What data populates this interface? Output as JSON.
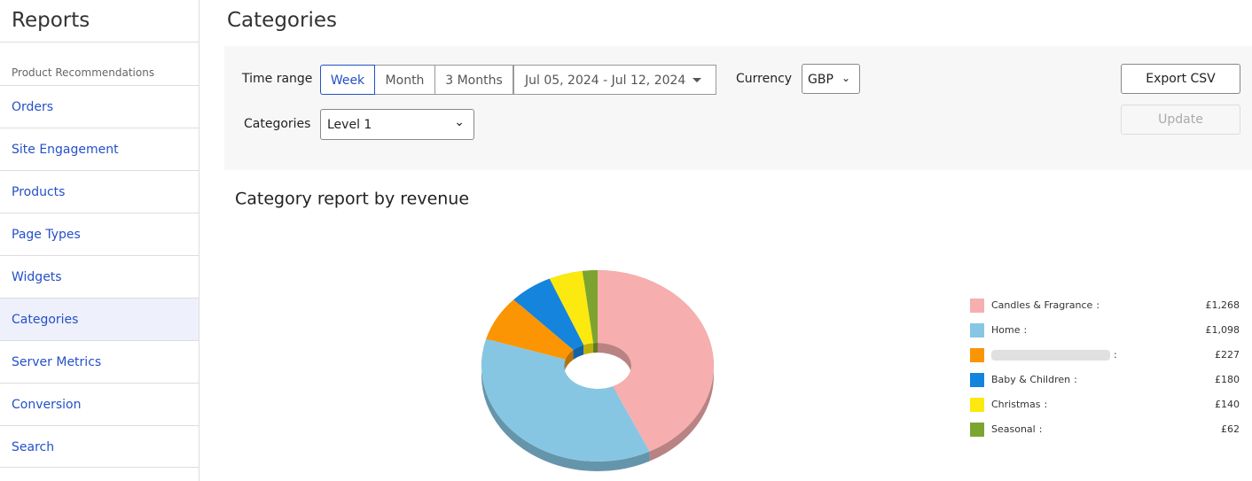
{
  "sidebar": {
    "title": "Reports",
    "section": "Product Recommendations",
    "items": [
      "Orders",
      "Site Engagement",
      "Products",
      "Page Types",
      "Widgets",
      "Categories",
      "Server Metrics",
      "Conversion",
      "Search"
    ],
    "active_index": 5
  },
  "header": {
    "title": "Categories"
  },
  "filters": {
    "time_range_label": "Time range",
    "time_range_options": [
      "Week",
      "Month",
      "3 Months"
    ],
    "active_option": 0,
    "date_range": "Jul 05, 2024 - Jul 12, 2024",
    "currency_label": "Currency",
    "currency": "GBP",
    "categories_label": "Categories",
    "categories_level": "Level 1",
    "export_button": "Export CSV",
    "update_button": "Update"
  },
  "chart_data": {
    "type": "pie",
    "donut": true,
    "title": "Category report by revenue",
    "categories": [
      "Candles & Fragrance",
      "Home",
      null,
      "Baby & Children",
      "Christmas",
      "Seasonal"
    ],
    "values": [
      1268,
      1098,
      227,
      180,
      140,
      62
    ],
    "value_labels": [
      "£1,268",
      "£1,098",
      "£227",
      "£180",
      "£140",
      "£62"
    ],
    "colors": [
      "#f7aeae",
      "#87c6e2",
      "#fb9504",
      "#1584dc",
      "#fbe90f",
      "#7da431"
    ],
    "legend_separator": ":",
    "legend_position": "right"
  }
}
